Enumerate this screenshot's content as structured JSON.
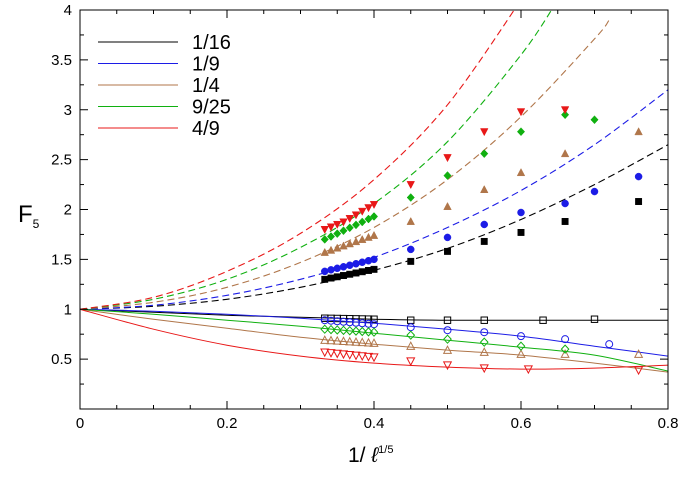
{
  "chart_data": {
    "type": "scatter",
    "ylabel": "F",
    "ylabel_sub": "5",
    "xlabel_prefix": "1/ ",
    "xlabel_ell": "ℓ",
    "xlabel_exponent": "1/5",
    "xlim": [
      0,
      0.8
    ],
    "ylim": [
      0,
      4
    ],
    "xticks": [
      0,
      0.2,
      0.4,
      0.6,
      0.8
    ],
    "xtick_labels": [
      "0",
      "0.2",
      "0.4",
      "0.6",
      "0.8"
    ],
    "yticks": [
      0.5,
      1,
      1.5,
      2,
      2.5,
      3,
      3.5,
      4
    ],
    "ytick_labels": [
      "0.5",
      "1",
      "1.5",
      "2",
      "2.5",
      "3",
      "3.5",
      "4"
    ],
    "legend": {
      "position": "top-left",
      "entries": [
        {
          "label": "1/16",
          "color": "#000000"
        },
        {
          "label": "1/9",
          "color": "#1c1ce6"
        },
        {
          "label": "1/4",
          "color": "#b0764a"
        },
        {
          "label": "9/25",
          "color": "#10b010"
        },
        {
          "label": "4/9",
          "color": "#e81818"
        }
      ]
    },
    "series": [
      {
        "name": "1/16",
        "color": "#000000",
        "upper_marker": "square",
        "lower_marker": "open-square",
        "upper_points": [
          [
            0.333,
            1.3
          ],
          [
            0.4,
            1.4
          ],
          [
            0.45,
            1.48
          ],
          [
            0.5,
            1.58
          ],
          [
            0.55,
            1.68
          ],
          [
            0.6,
            1.77
          ],
          [
            0.66,
            1.88
          ],
          [
            0.76,
            2.08
          ]
        ],
        "upper_curve": [
          [
            0,
            1.0
          ],
          [
            0.1,
            1.03
          ],
          [
            0.2,
            1.1
          ],
          [
            0.3,
            1.22
          ],
          [
            0.4,
            1.39
          ],
          [
            0.5,
            1.61
          ],
          [
            0.6,
            1.9
          ],
          [
            0.7,
            2.25
          ],
          [
            0.8,
            2.65
          ]
        ],
        "lower_points": [
          [
            0.333,
            0.91
          ],
          [
            0.4,
            0.9
          ],
          [
            0.45,
            0.89
          ],
          [
            0.5,
            0.89
          ],
          [
            0.55,
            0.89
          ],
          [
            0.63,
            0.89
          ],
          [
            0.7,
            0.9
          ]
        ],
        "lower_curve": [
          [
            0,
            1.0
          ],
          [
            0.1,
            0.97
          ],
          [
            0.2,
            0.94
          ],
          [
            0.3,
            0.92
          ],
          [
            0.4,
            0.9
          ],
          [
            0.5,
            0.89
          ],
          [
            0.6,
            0.89
          ],
          [
            0.7,
            0.89
          ],
          [
            0.8,
            0.89
          ]
        ]
      },
      {
        "name": "1/9",
        "color": "#1c1ce6",
        "upper_marker": "circle",
        "lower_marker": "open-circle",
        "upper_points": [
          [
            0.333,
            1.38
          ],
          [
            0.4,
            1.5
          ],
          [
            0.45,
            1.6
          ],
          [
            0.5,
            1.72
          ],
          [
            0.55,
            1.85
          ],
          [
            0.6,
            1.97
          ],
          [
            0.66,
            2.06
          ],
          [
            0.7,
            2.18
          ],
          [
            0.76,
            2.33
          ]
        ],
        "upper_curve": [
          [
            0,
            1.0
          ],
          [
            0.1,
            1.04
          ],
          [
            0.2,
            1.14
          ],
          [
            0.3,
            1.3
          ],
          [
            0.4,
            1.52
          ],
          [
            0.5,
            1.82
          ],
          [
            0.6,
            2.19
          ],
          [
            0.7,
            2.65
          ],
          [
            0.8,
            3.2
          ]
        ],
        "lower_points": [
          [
            0.333,
            0.89
          ],
          [
            0.4,
            0.85
          ],
          [
            0.45,
            0.82
          ],
          [
            0.5,
            0.79
          ],
          [
            0.55,
            0.77
          ],
          [
            0.6,
            0.73
          ],
          [
            0.66,
            0.7
          ],
          [
            0.72,
            0.65
          ]
        ],
        "lower_curve": [
          [
            0,
            1.0
          ],
          [
            0.1,
            0.98
          ],
          [
            0.2,
            0.95
          ],
          [
            0.3,
            0.91
          ],
          [
            0.4,
            0.86
          ],
          [
            0.5,
            0.8
          ],
          [
            0.6,
            0.73
          ],
          [
            0.7,
            0.63
          ],
          [
            0.8,
            0.53
          ]
        ]
      },
      {
        "name": "1/4",
        "color": "#b0764a",
        "upper_marker": "triangle",
        "lower_marker": "open-triangle",
        "upper_points": [
          [
            0.333,
            1.57
          ],
          [
            0.4,
            1.74
          ],
          [
            0.45,
            1.88
          ],
          [
            0.5,
            2.03
          ],
          [
            0.55,
            2.2
          ],
          [
            0.6,
            2.37
          ],
          [
            0.66,
            2.56
          ],
          [
            0.76,
            2.78
          ]
        ],
        "upper_curve": [
          [
            0,
            1.0
          ],
          [
            0.1,
            1.07
          ],
          [
            0.2,
            1.22
          ],
          [
            0.3,
            1.47
          ],
          [
            0.4,
            1.82
          ],
          [
            0.5,
            2.3
          ],
          [
            0.6,
            2.93
          ],
          [
            0.7,
            3.71
          ],
          [
            0.72,
            3.9
          ]
        ],
        "lower_points": [
          [
            0.333,
            0.69
          ],
          [
            0.4,
            0.66
          ],
          [
            0.45,
            0.63
          ],
          [
            0.5,
            0.59
          ],
          [
            0.55,
            0.57
          ],
          [
            0.6,
            0.55
          ],
          [
            0.66,
            0.55
          ],
          [
            0.76,
            0.55
          ]
        ],
        "lower_curve": [
          [
            0,
            1.0
          ],
          [
            0.1,
            0.9
          ],
          [
            0.2,
            0.81
          ],
          [
            0.3,
            0.72
          ],
          [
            0.4,
            0.65
          ],
          [
            0.5,
            0.59
          ],
          [
            0.6,
            0.54
          ],
          [
            0.7,
            0.46
          ],
          [
            0.8,
            0.37
          ]
        ]
      },
      {
        "name": "9/25",
        "color": "#10b010",
        "upper_marker": "diamond",
        "lower_marker": "open-diamond",
        "upper_points": [
          [
            0.333,
            1.7
          ],
          [
            0.4,
            1.93
          ],
          [
            0.45,
            2.12
          ],
          [
            0.5,
            2.34
          ],
          [
            0.55,
            2.56
          ],
          [
            0.6,
            2.78
          ],
          [
            0.66,
            2.95
          ],
          [
            0.7,
            2.9
          ]
        ],
        "upper_curve": [
          [
            0,
            1.0
          ],
          [
            0.1,
            1.1
          ],
          [
            0.2,
            1.3
          ],
          [
            0.3,
            1.62
          ],
          [
            0.4,
            2.06
          ],
          [
            0.5,
            2.68
          ],
          [
            0.6,
            3.55
          ],
          [
            0.65,
            4.1
          ]
        ],
        "lower_points": [
          [
            0.333,
            0.8
          ],
          [
            0.4,
            0.77
          ],
          [
            0.45,
            0.74
          ],
          [
            0.5,
            0.7
          ],
          [
            0.55,
            0.67
          ],
          [
            0.6,
            0.63
          ],
          [
            0.66,
            0.6
          ]
        ],
        "lower_curve": [
          [
            0,
            1.0
          ],
          [
            0.1,
            0.95
          ],
          [
            0.2,
            0.89
          ],
          [
            0.3,
            0.83
          ],
          [
            0.4,
            0.76
          ],
          [
            0.5,
            0.69
          ],
          [
            0.6,
            0.62
          ],
          [
            0.7,
            0.54
          ],
          [
            0.8,
            0.38
          ]
        ]
      },
      {
        "name": "4/9",
        "color": "#e81818",
        "upper_marker": "down-triangle",
        "lower_marker": "open-down-triangle",
        "upper_points": [
          [
            0.333,
            1.8
          ],
          [
            0.36,
            1.88
          ],
          [
            0.4,
            2.05
          ],
          [
            0.45,
            2.25
          ],
          [
            0.5,
            2.52
          ],
          [
            0.55,
            2.78
          ],
          [
            0.6,
            2.98
          ],
          [
            0.66,
            3.0
          ]
        ],
        "upper_curve": [
          [
            0,
            1.0
          ],
          [
            0.1,
            1.12
          ],
          [
            0.2,
            1.38
          ],
          [
            0.3,
            1.76
          ],
          [
            0.4,
            2.3
          ],
          [
            0.5,
            3.05
          ],
          [
            0.6,
            4.1
          ]
        ],
        "lower_points": [
          [
            0.333,
            0.57
          ],
          [
            0.4,
            0.52
          ],
          [
            0.45,
            0.48
          ],
          [
            0.5,
            0.44
          ],
          [
            0.55,
            0.41
          ],
          [
            0.61,
            0.4
          ],
          [
            0.76,
            0.39
          ]
        ],
        "lower_curve": [
          [
            0,
            1.0
          ],
          [
            0.1,
            0.8
          ],
          [
            0.2,
            0.64
          ],
          [
            0.3,
            0.53
          ],
          [
            0.4,
            0.46
          ],
          [
            0.5,
            0.42
          ],
          [
            0.6,
            0.4
          ],
          [
            0.7,
            0.41
          ],
          [
            0.8,
            0.44
          ]
        ]
      }
    ]
  }
}
